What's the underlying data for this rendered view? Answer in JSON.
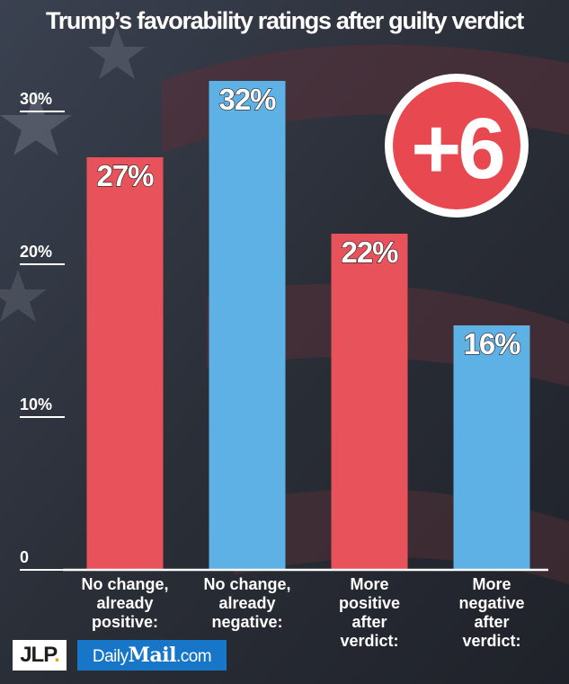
{
  "title": "Trump’s favorability ratings after guilty verdict",
  "badge": {
    "text": "+6",
    "color": "#e8484f"
  },
  "logos": {
    "jlp_main": "JLP",
    "jlp_dot": ".",
    "dm_part1": "Daily",
    "dm_part2": "Mail",
    "dm_part3": ".com"
  },
  "colors": {
    "red": "#e8525a",
    "blue": "#5db1e4"
  },
  "chart_data": {
    "type": "bar",
    "title": "Trump’s favorability ratings after guilty verdict",
    "categories": [
      [
        "No change,",
        "already",
        "positive:"
      ],
      [
        "No change,",
        "already",
        "negative:"
      ],
      [
        "More",
        "positive",
        "after",
        "verdict:"
      ],
      [
        "More",
        "negative",
        "after",
        "verdict:"
      ]
    ],
    "values": [
      27,
      32,
      22,
      16
    ],
    "value_labels": [
      "27%",
      "32%",
      "22%",
      "16%"
    ],
    "bar_colors": [
      "red",
      "blue",
      "red",
      "blue"
    ],
    "yticks": [
      0,
      10,
      20,
      30
    ],
    "ytick_labels": [
      "0",
      "10%",
      "20%",
      "30%"
    ],
    "ylim": [
      0,
      32
    ],
    "grid": false
  }
}
